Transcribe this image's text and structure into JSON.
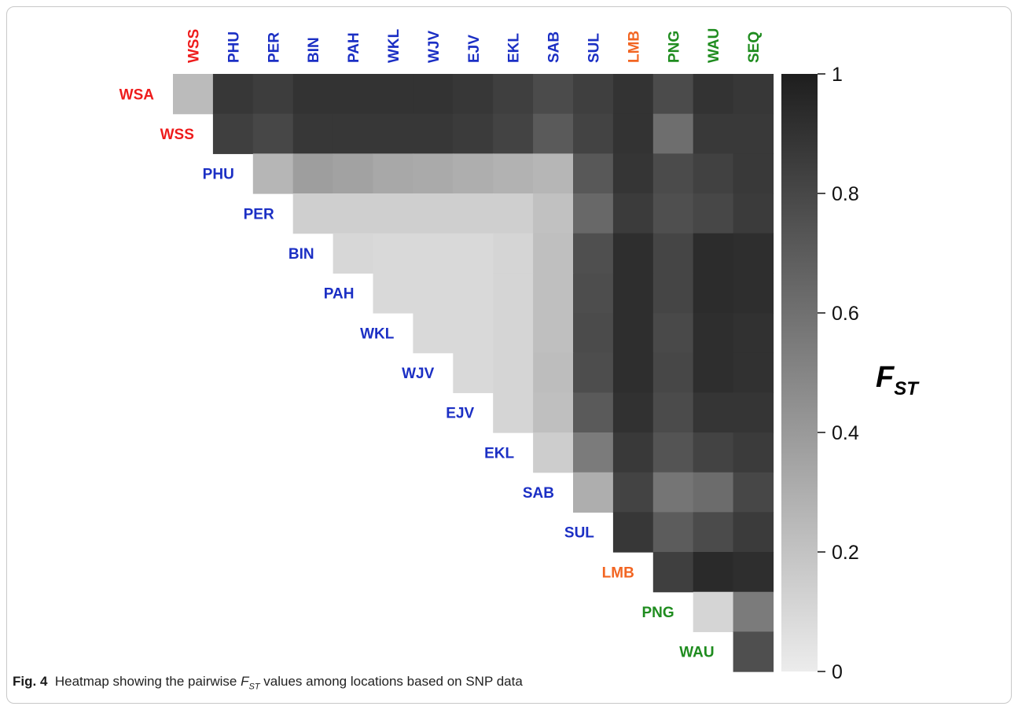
{
  "chart_data": {
    "type": "heatmap",
    "columns": [
      "WSS",
      "PHU",
      "PER",
      "BIN",
      "PAH",
      "WKL",
      "WJV",
      "EJV",
      "EKL",
      "SAB",
      "SUL",
      "LMB",
      "PNG",
      "WAU",
      "SEQ"
    ],
    "rows": [
      "WSA",
      "WSS",
      "PHU",
      "PER",
      "BIN",
      "PAH",
      "WKL",
      "WJV",
      "EJV",
      "EKL",
      "SAB",
      "SUL",
      "LMB",
      "PNG",
      "WAU"
    ],
    "matrix": [
      [
        0.24,
        0.88,
        0.85,
        0.9,
        0.9,
        0.9,
        0.9,
        0.88,
        0.84,
        0.78,
        0.84,
        0.9,
        0.78,
        0.9,
        0.88
      ],
      [
        null,
        0.84,
        0.8,
        0.88,
        0.88,
        0.88,
        0.88,
        0.86,
        0.82,
        0.71,
        0.82,
        0.9,
        0.61,
        0.87,
        0.87
      ],
      [
        null,
        null,
        0.26,
        0.38,
        0.36,
        0.33,
        0.32,
        0.3,
        0.28,
        0.26,
        0.72,
        0.89,
        0.78,
        0.83,
        0.87
      ],
      [
        null,
        null,
        null,
        0.14,
        0.14,
        0.14,
        0.14,
        0.14,
        0.14,
        0.21,
        0.64,
        0.86,
        0.76,
        0.8,
        0.86
      ],
      [
        null,
        null,
        null,
        null,
        0.1,
        0.09,
        0.09,
        0.09,
        0.11,
        0.22,
        0.76,
        0.92,
        0.81,
        0.93,
        0.92
      ],
      [
        null,
        null,
        null,
        null,
        null,
        0.09,
        0.09,
        0.09,
        0.11,
        0.22,
        0.77,
        0.92,
        0.81,
        0.93,
        0.92
      ],
      [
        null,
        null,
        null,
        null,
        null,
        null,
        0.09,
        0.09,
        0.11,
        0.22,
        0.78,
        0.92,
        0.79,
        0.92,
        0.91
      ],
      [
        null,
        null,
        null,
        null,
        null,
        null,
        null,
        0.09,
        0.11,
        0.23,
        0.77,
        0.92,
        0.8,
        0.92,
        0.91
      ],
      [
        null,
        null,
        null,
        null,
        null,
        null,
        null,
        null,
        0.11,
        0.22,
        0.71,
        0.91,
        0.78,
        0.89,
        0.89
      ],
      [
        null,
        null,
        null,
        null,
        null,
        null,
        null,
        null,
        null,
        0.15,
        0.55,
        0.87,
        0.74,
        0.82,
        0.86
      ],
      [
        null,
        null,
        null,
        null,
        null,
        null,
        null,
        null,
        null,
        null,
        0.3,
        0.82,
        0.58,
        0.62,
        0.8
      ],
      [
        null,
        null,
        null,
        null,
        null,
        null,
        null,
        null,
        null,
        null,
        null,
        0.88,
        0.7,
        0.78,
        0.86
      ],
      [
        null,
        null,
        null,
        null,
        null,
        null,
        null,
        null,
        null,
        null,
        null,
        null,
        0.84,
        0.94,
        0.92
      ],
      [
        null,
        null,
        null,
        null,
        null,
        null,
        null,
        null,
        null,
        null,
        null,
        null,
        null,
        0.11,
        0.55
      ],
      [
        null,
        null,
        null,
        null,
        null,
        null,
        null,
        null,
        null,
        null,
        null,
        null,
        null,
        null,
        0.76
      ]
    ],
    "colors": {
      "WSS": "#ee1c1c",
      "WSA": "#ee1c1c",
      "PHU": "#1b2fc4",
      "PER": "#1b2fc4",
      "BIN": "#1b2fc4",
      "PAH": "#1b2fc4",
      "WKL": "#1b2fc4",
      "WJV": "#1b2fc4",
      "EJV": "#1b2fc4",
      "EKL": "#1b2fc4",
      "SAB": "#1b2fc4",
      "SUL": "#1b2fc4",
      "LMB": "#f26522",
      "PNG": "#1f8c1f",
      "WAU": "#1f8c1f",
      "SEQ": "#1f8c1f"
    },
    "color_scale": {
      "min": 0,
      "max": 1,
      "low_color": "#ececec",
      "high_color": "#1e1e1e"
    },
    "colorbar": {
      "ticks": [
        "0",
        "0.2",
        "0.4",
        "0.6",
        "0.8",
        "1"
      ],
      "label": "F",
      "label_sub": "ST"
    }
  },
  "caption": {
    "fig_label": "Fig. 4",
    "text_before": "Heatmap showing the pairwise ",
    "symbol": "F",
    "symbol_sub": "ST",
    "text_after": " values among locations based on SNP data"
  }
}
